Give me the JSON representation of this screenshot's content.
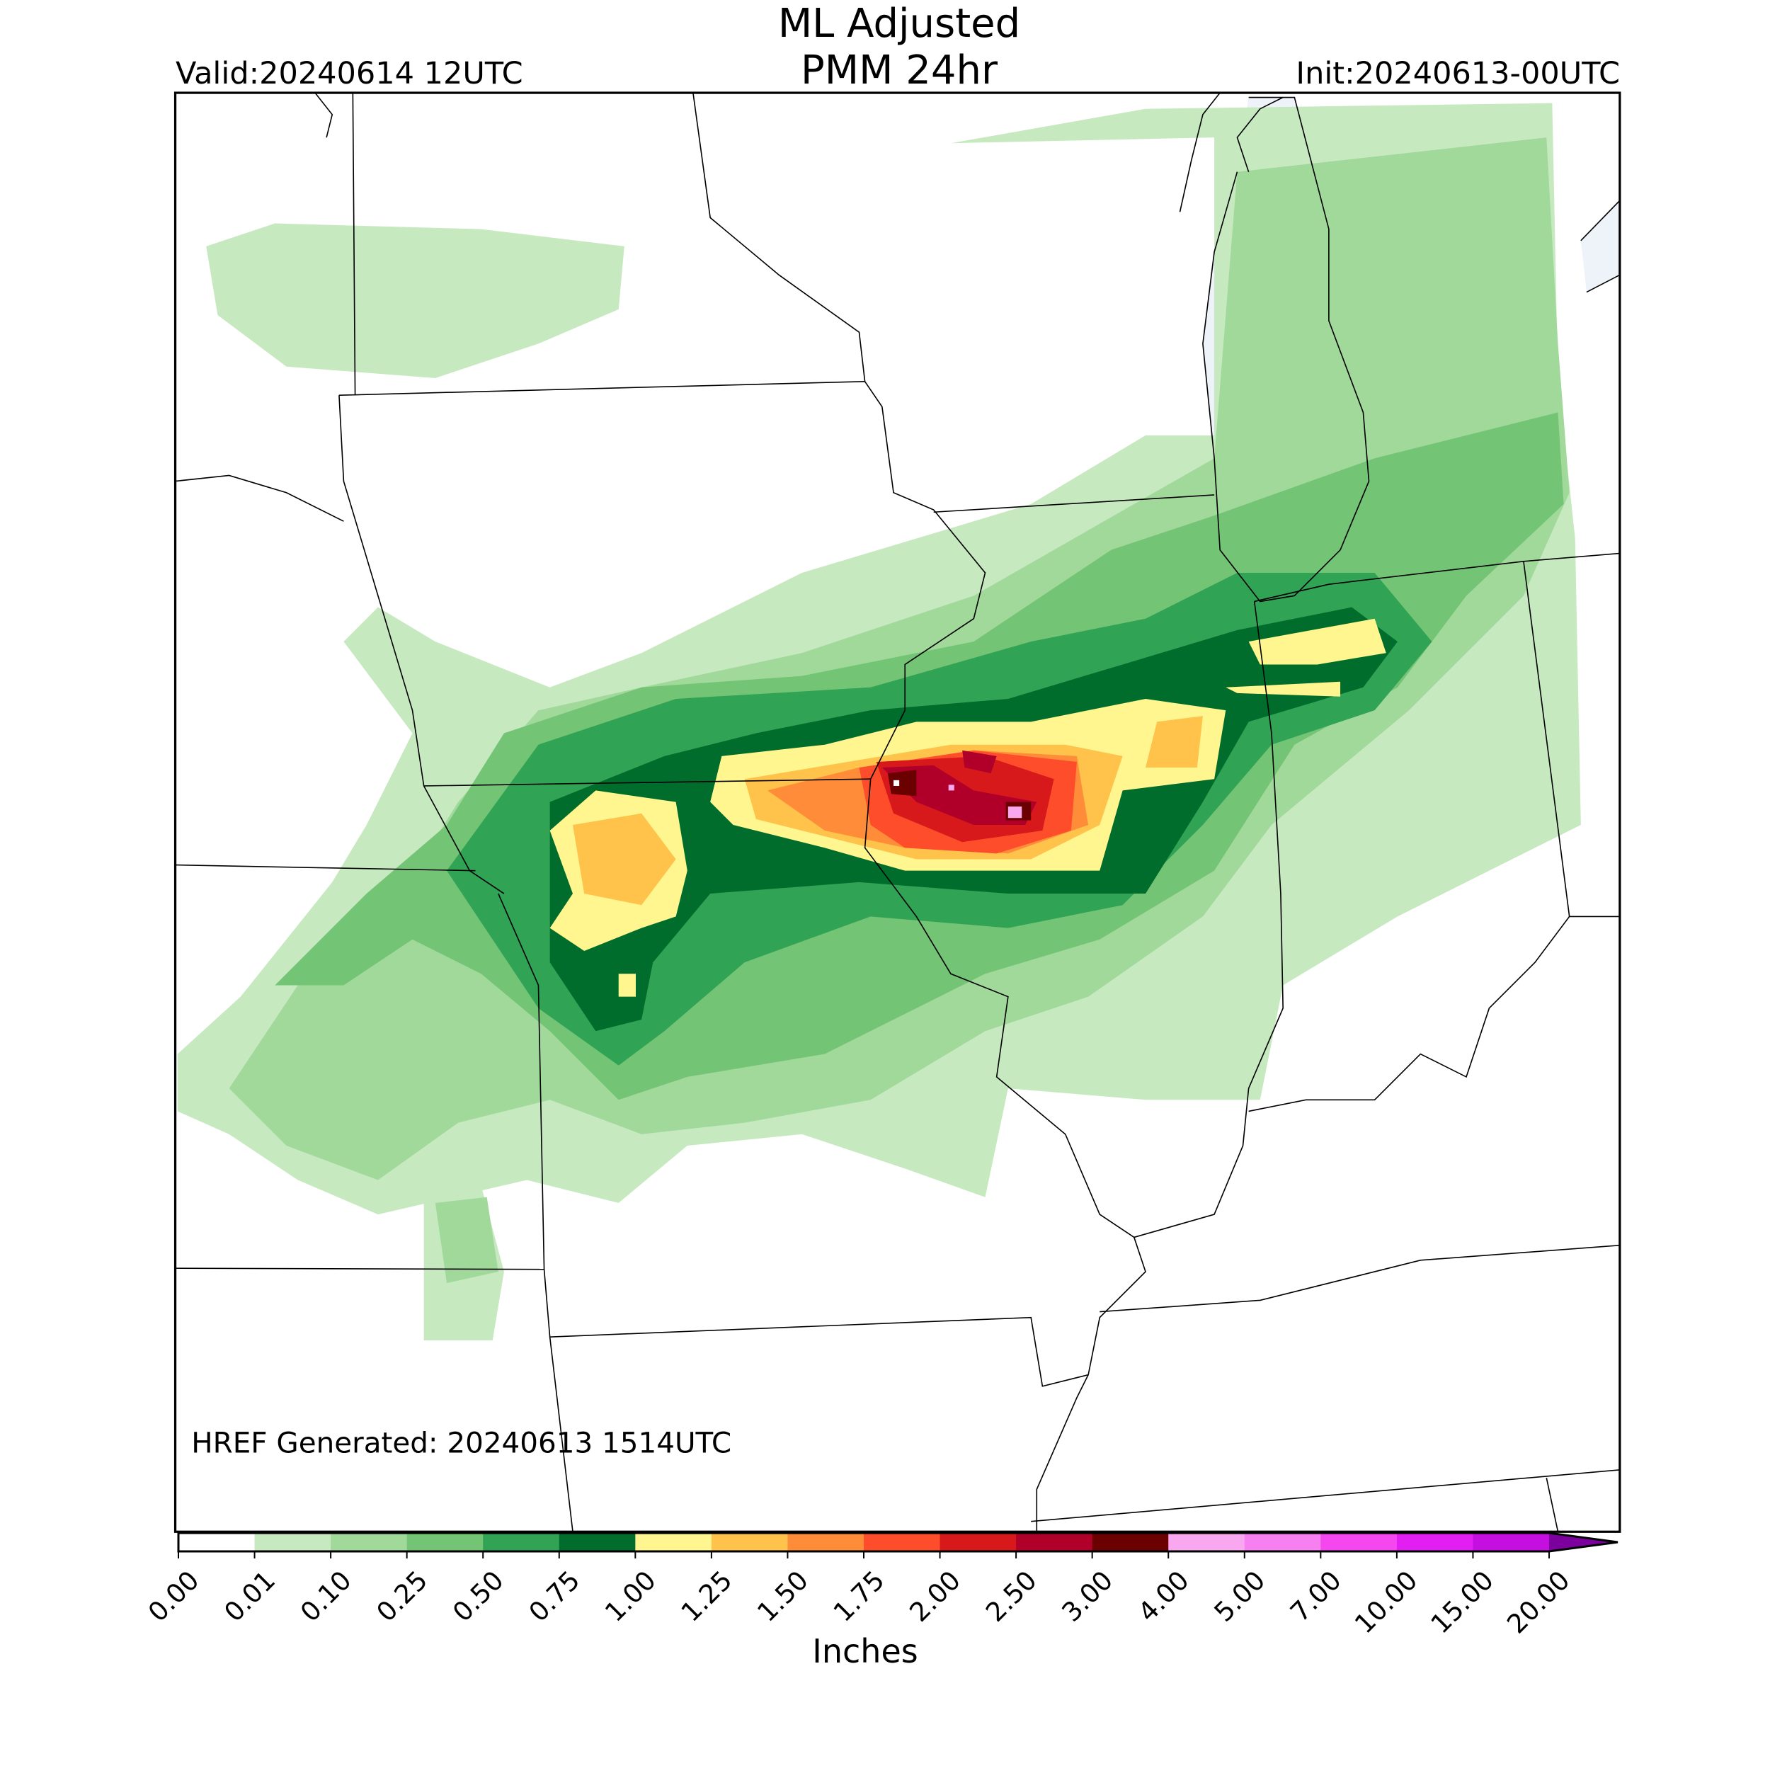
{
  "header": {
    "title_line1": "ML Adjusted",
    "title_line2": "PMM 24hr",
    "valid": "Valid:20240614 12UTC",
    "init": "Init:20240613-00UTC"
  },
  "map": {
    "annotation": "HREF Generated: 20240613 1514UTC"
  },
  "colorbar": {
    "label": "Inches",
    "ticks": [
      "0.00",
      "0.01",
      "0.10",
      "0.25",
      "0.50",
      "0.75",
      "1.00",
      "1.25",
      "1.50",
      "1.75",
      "2.00",
      "2.50",
      "3.00",
      "4.00",
      "5.00",
      "7.00",
      "10.00",
      "15.00",
      "20.00"
    ],
    "colors": [
      "#ffffff",
      "#c7e9c0",
      "#a1d99b",
      "#74c476",
      "#31a354",
      "#006d2c",
      "#fff68f",
      "#ffc24a",
      "#fe8c38",
      "#fd4d2a",
      "#d8191c",
      "#b0002a",
      "#6b0000",
      "#f9a8f0",
      "#f77ff0",
      "#f547f0",
      "#e31ef3",
      "#c40fe0"
    ],
    "extend_color": "#7b009e"
  }
}
